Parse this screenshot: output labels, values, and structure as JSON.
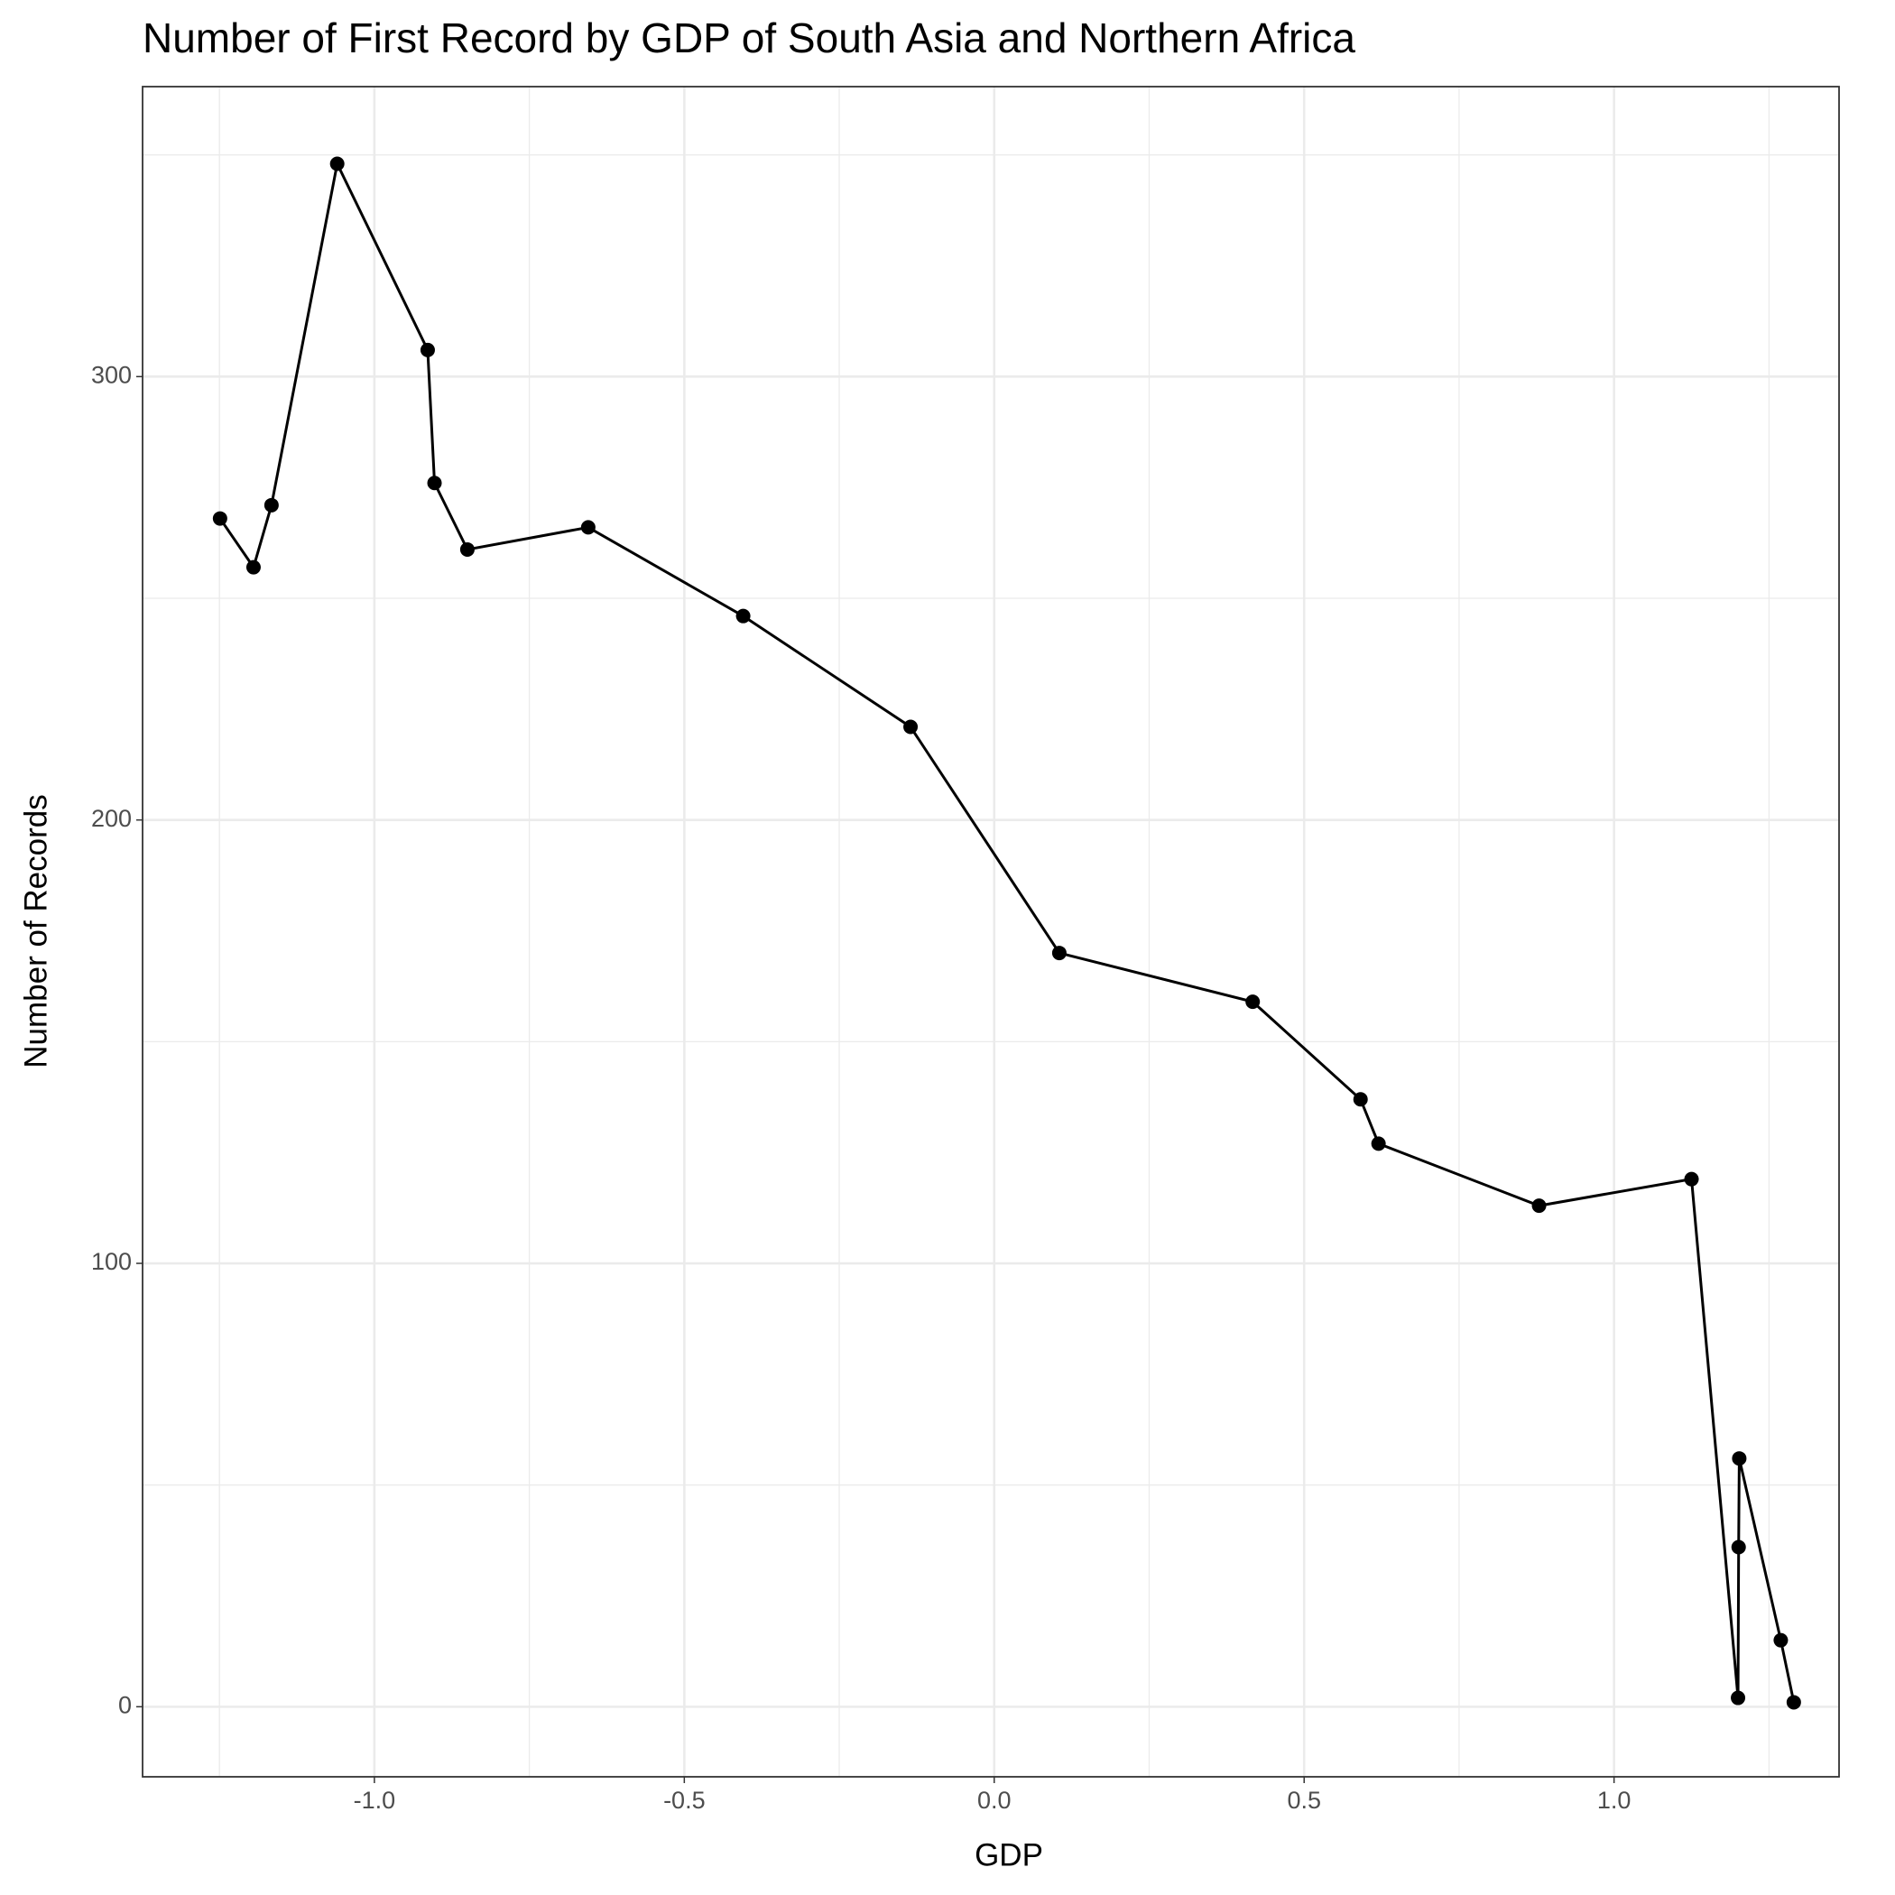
{
  "chart_data": {
    "type": "line",
    "title": "Number of First Record by GDP of South Asia and Northern Africa",
    "x_label": "GDP",
    "y_label": "Number of Records",
    "x": [
      -1.249,
      -1.195,
      -1.166,
      -1.06,
      -0.914,
      -0.903,
      -0.85,
      -0.655,
      -0.405,
      -0.135,
      0.105,
      0.417,
      0.591,
      0.62,
      0.879,
      1.125,
      1.2,
      1.201,
      1.202,
      1.269,
      1.29
    ],
    "values": [
      268,
      257,
      271,
      348,
      306,
      276,
      261,
      266,
      246,
      221,
      170,
      159,
      137,
      127,
      113,
      119,
      2,
      36,
      56,
      15,
      1
    ],
    "color": "#000000",
    "xlim": [
      -1.374,
      1.363
    ],
    "ylim": [
      -15.8,
      365.4
    ],
    "xticks": [
      {
        "value": -1,
        "label": "-1.0"
      },
      -0.5,
      {
        "value": 0,
        "label": "0.0"
      },
      0.5,
      {
        "value": 1,
        "label": "1.0"
      }
    ],
    "yticks": [
      0,
      100,
      200,
      300
    ],
    "x_minor_grid": [
      -1.25,
      -0.75,
      -0.25,
      0.25,
      0.75,
      1.25
    ],
    "y_minor_grid": [
      50,
      150,
      250,
      350
    ],
    "grid": true
  }
}
